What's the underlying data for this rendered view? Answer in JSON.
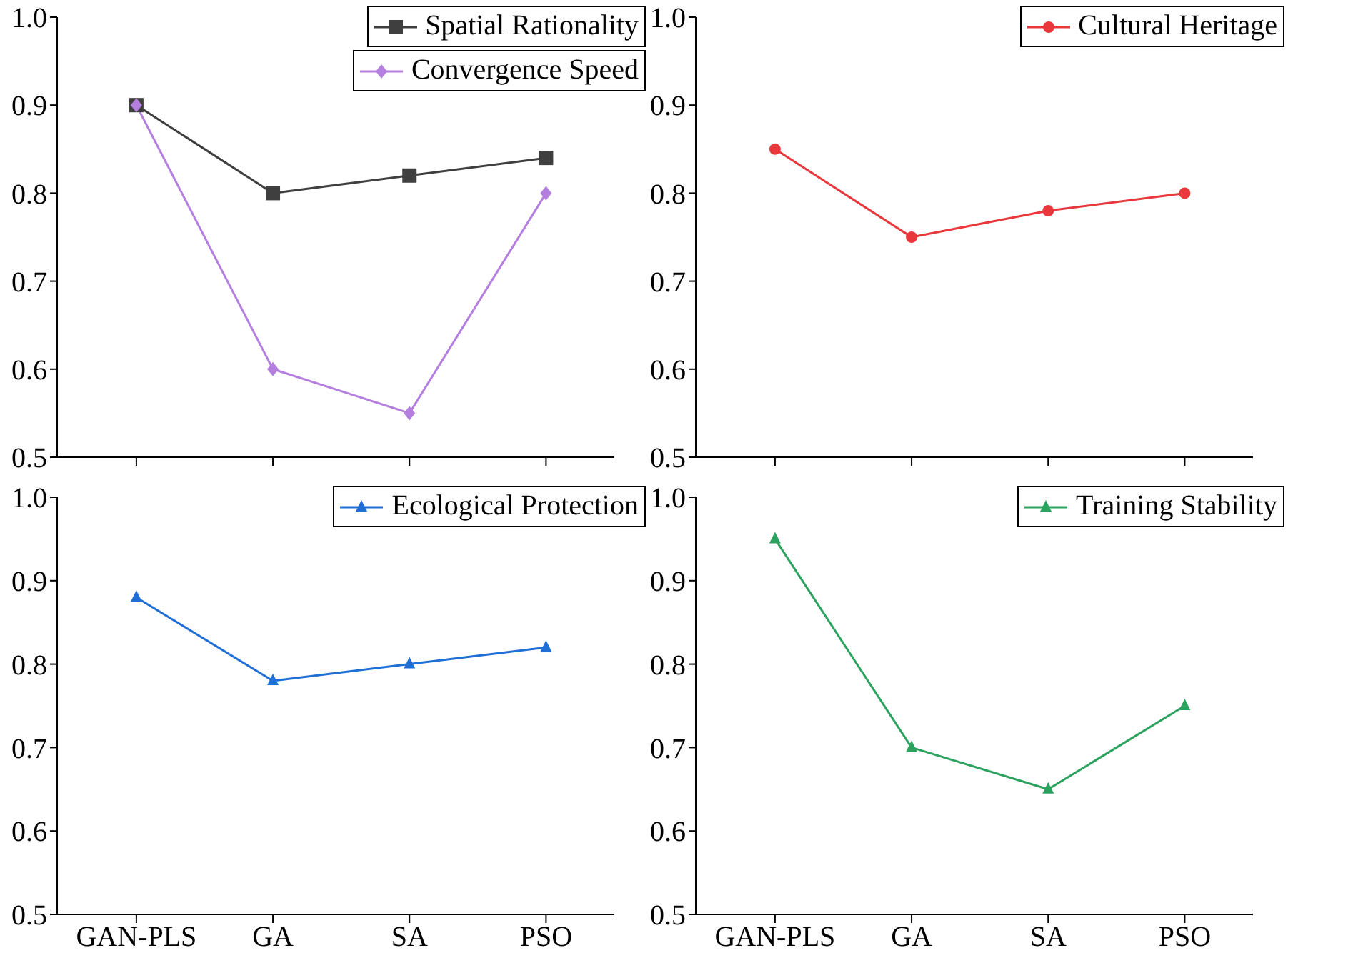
{
  "chart_data": [
    {
      "type": "line",
      "categories": [
        null,
        null,
        null,
        null
      ],
      "series": [
        {
          "name": "Spatial Rationality",
          "color": "#3f3f3f",
          "marker": "square",
          "values": [
            0.9,
            0.8,
            0.82,
            0.84
          ]
        },
        {
          "name": "Convergence Speed",
          "color": "#b57fe0",
          "marker": "diamond",
          "values": [
            0.9,
            0.6,
            0.55,
            0.8
          ]
        }
      ],
      "ylim": [
        0.5,
        1.0
      ],
      "yticks": [
        {
          "value": 0.5,
          "label": "0.5"
        },
        {
          "value": 0.6,
          "label": "0.6"
        },
        {
          "value": 0.7,
          "label": "0.7"
        },
        {
          "value": 0.8,
          "label": "0.8"
        },
        {
          "value": 0.9,
          "label": "0.9"
        },
        {
          "value": 1.0,
          "label": "1.0"
        }
      ],
      "legend": "top right",
      "tick_labels": "y",
      "grid": false
    },
    {
      "type": "line",
      "categories": [
        null,
        null,
        null,
        null
      ],
      "series": [
        {
          "name": "Cultural Heritage",
          "color": "#e8383b",
          "marker": "circle",
          "values": [
            0.85,
            0.75,
            0.78,
            0.8
          ]
        }
      ],
      "ylim": [
        0.5,
        1.0
      ],
      "yticks": [
        {
          "value": 0.5,
          "label": "0.5"
        },
        {
          "value": 0.6,
          "label": "0.6"
        },
        {
          "value": 0.7,
          "label": "0.7"
        },
        {
          "value": 0.8,
          "label": "0.8"
        },
        {
          "value": 0.9,
          "label": "0.9"
        },
        {
          "value": 1.0,
          "label": "1.0"
        }
      ],
      "legend": "top right",
      "tick_labels": "y",
      "grid": false
    },
    {
      "type": "line",
      "categories": [
        "GAN-PLS",
        "GA",
        "SA",
        "PSO"
      ],
      "series": [
        {
          "name": "Ecological Protection",
          "color": "#1f6fd6",
          "marker": "triangle",
          "values": [
            0.88,
            0.78,
            0.8,
            0.82
          ]
        }
      ],
      "ylim": [
        0.5,
        1.0
      ],
      "yticks": [
        {
          "value": 0.5,
          "label": "0.5"
        },
        {
          "value": 0.6,
          "label": "0.6"
        },
        {
          "value": 0.7,
          "label": "0.7"
        },
        {
          "value": 0.8,
          "label": "0.8"
        },
        {
          "value": 0.9,
          "label": "0.9"
        },
        {
          "value": 1.0,
          "label": "1.0"
        }
      ],
      "legend": "top right",
      "grid": false
    },
    {
      "type": "line",
      "categories": [
        "GAN-PLS",
        "GA",
        "SA",
        "PSO"
      ],
      "series": [
        {
          "name": "Training Stability",
          "color": "#2ca25f",
          "marker": "triangle",
          "values": [
            0.95,
            0.7,
            0.65,
            0.75
          ]
        }
      ],
      "ylim": [
        0.5,
        1.0
      ],
      "yticks": [
        {
          "value": 0.5,
          "label": "0.5"
        },
        {
          "value": 0.6,
          "label": "0.6"
        },
        {
          "value": 0.7,
          "label": "0.7"
        },
        {
          "value": 0.8,
          "label": "0.8"
        },
        {
          "value": 0.9,
          "label": "0.9"
        },
        {
          "value": 1.0,
          "label": "1.0"
        }
      ],
      "legend": "top right",
      "grid": false
    }
  ]
}
